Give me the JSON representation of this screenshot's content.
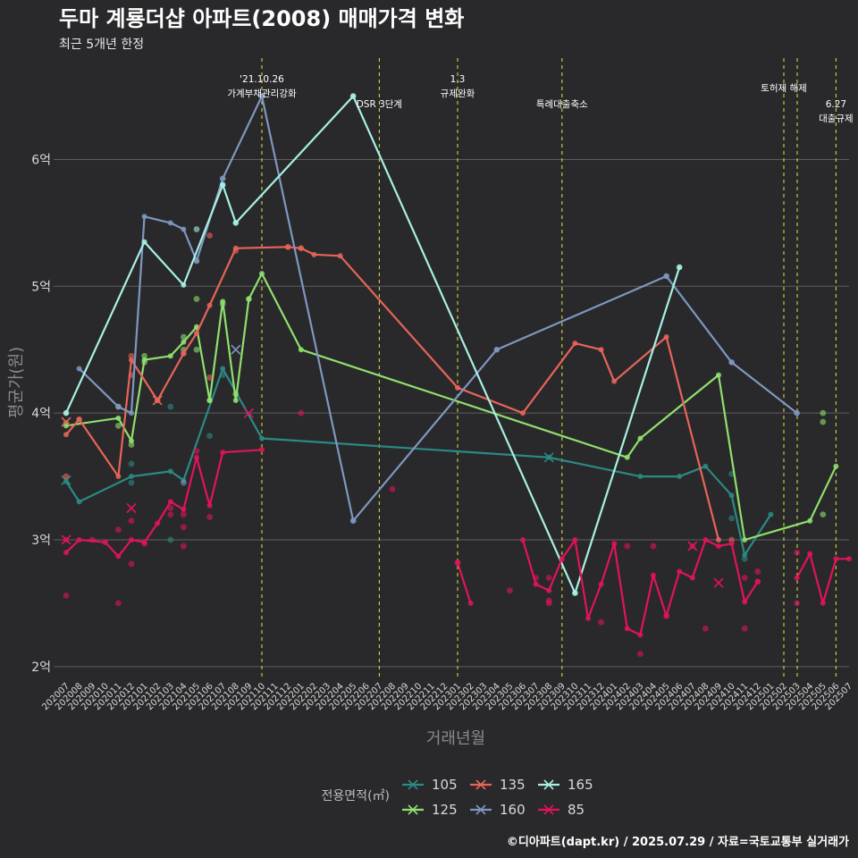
{
  "chart_data": {
    "type": "line",
    "title": "두마 계룡더샵 아파트(2008) 매매가격 변화",
    "subtitle": "최근 5개년 한정",
    "xlabel": "거래년월",
    "ylabel": "평균가(원)",
    "ylim": [
      1.9,
      6.8
    ],
    "yticks": [
      {
        "v": 2,
        "label": "2억"
      },
      {
        "v": 3,
        "label": "3억"
      },
      {
        "v": 4,
        "label": "4억"
      },
      {
        "v": 5,
        "label": "5억"
      },
      {
        "v": 6,
        "label": "6억"
      }
    ],
    "categories": [
      "202007",
      "202008",
      "202009",
      "202010",
      "202011",
      "202012",
      "202101",
      "202102",
      "202103",
      "202104",
      "202105",
      "202106",
      "202107",
      "202108",
      "202109",
      "202110",
      "202111",
      "202112",
      "202201",
      "202202",
      "202203",
      "202204",
      "202205",
      "202206",
      "202207",
      "202208",
      "202209",
      "202210",
      "202211",
      "202212",
      "202301",
      "202302",
      "202303",
      "202304",
      "202305",
      "202306",
      "202307",
      "202308",
      "202309",
      "202310",
      "202311",
      "202312",
      "202401",
      "202402",
      "202403",
      "202404",
      "202405",
      "202406",
      "202407",
      "202408",
      "202409",
      "202410",
      "202411",
      "202412",
      "202501",
      "202502",
      "202503",
      "202504",
      "202505",
      "202506",
      "202507"
    ],
    "grid": true,
    "legend": {
      "title": "전용면적(㎡)",
      "position": "bottom"
    },
    "annotations": [
      {
        "x": 15,
        "lines": [
          "'21.10.26",
          "가계부채관리강화"
        ],
        "row": 0
      },
      {
        "x": 24,
        "lines": [
          "DSR 3단계"
        ],
        "row": 1
      },
      {
        "x": 30,
        "lines": [
          "1.3",
          "규제완화"
        ],
        "row": 0
      },
      {
        "x": 38,
        "lines": [
          "특례대출축소"
        ],
        "row": 1
      },
      {
        "x": 55,
        "lines": [
          "토허제 해제"
        ],
        "row": 0.5
      },
      {
        "x": 56,
        "lines": [],
        "row": 0
      },
      {
        "x": 59,
        "lines": [
          "6.27",
          "대출규제"
        ],
        "row": 1
      }
    ],
    "series": [
      {
        "name": "105",
        "color": "#2a8a84",
        "points": [
          [
            0,
            3.46
          ],
          [
            1,
            3.3
          ],
          [
            5,
            3.5
          ],
          [
            8,
            3.54
          ],
          [
            9,
            3.47
          ],
          [
            12,
            4.35
          ],
          [
            15,
            3.8
          ],
          [
            37,
            3.65
          ],
          [
            44,
            3.5
          ],
          [
            47,
            3.5
          ],
          [
            49,
            3.58
          ],
          [
            51,
            3.35
          ],
          [
            52,
            2.88
          ],
          [
            54,
            3.2
          ]
        ],
        "scatter": [
          [
            5,
            3.6
          ],
          [
            5,
            3.45
          ],
          [
            8,
            4.05
          ],
          [
            8,
            3.0
          ],
          [
            11,
            3.82
          ],
          [
            12,
            4.3
          ],
          [
            51,
            3.17
          ],
          [
            51,
            3.52
          ],
          [
            52,
            2.85
          ]
        ],
        "crosses": [
          [
            0,
            3.47
          ],
          [
            37,
            3.65
          ]
        ]
      },
      {
        "name": "125",
        "color": "#8fe06e",
        "points": [
          [
            0,
            3.9
          ],
          [
            4,
            3.96
          ],
          [
            5,
            3.78
          ],
          [
            6,
            4.42
          ],
          [
            8,
            4.45
          ],
          [
            9,
            4.56
          ],
          [
            10,
            4.68
          ],
          [
            11,
            4.1
          ],
          [
            12,
            4.88
          ],
          [
            13,
            4.1
          ],
          [
            14,
            4.9
          ],
          [
            15,
            5.1
          ],
          [
            18,
            4.5
          ],
          [
            43,
            3.65
          ],
          [
            44,
            3.8
          ],
          [
            50,
            4.3
          ],
          [
            52,
            3.0
          ],
          [
            57,
            3.15
          ],
          [
            59,
            3.58
          ]
        ],
        "scatter": [
          [
            0,
            3.92
          ],
          [
            4,
            4.05
          ],
          [
            4,
            3.9
          ],
          [
            5,
            3.75
          ],
          [
            6,
            4.45
          ],
          [
            6,
            4.4
          ],
          [
            9,
            4.6
          ],
          [
            9,
            4.5
          ],
          [
            10,
            4.9
          ],
          [
            10,
            4.5
          ],
          [
            11,
            4.1
          ],
          [
            12,
            4.86
          ],
          [
            13,
            4.15
          ],
          [
            14,
            4.9
          ],
          [
            58,
            4.0
          ],
          [
            58,
            3.93
          ],
          [
            58,
            3.2
          ]
        ],
        "crosses": []
      },
      {
        "name": "135",
        "color": "#e8645a",
        "points": [
          [
            0,
            3.83
          ],
          [
            1,
            3.95
          ],
          [
            4,
            3.5
          ],
          [
            5,
            4.42
          ],
          [
            7,
            4.1
          ],
          [
            9,
            4.47
          ],
          [
            10,
            4.63
          ],
          [
            11,
            4.85
          ],
          [
            13,
            5.3
          ],
          [
            17,
            5.31
          ],
          [
            18,
            5.3
          ],
          [
            19,
            5.25
          ],
          [
            21,
            5.24
          ],
          [
            30,
            4.2
          ],
          [
            35,
            4.0
          ],
          [
            39,
            4.55
          ],
          [
            41,
            4.5
          ],
          [
            42,
            4.25
          ],
          [
            46,
            4.6
          ],
          [
            50,
            3.0
          ]
        ],
        "scatter": [
          [
            0,
            3.5
          ],
          [
            1,
            3.95
          ],
          [
            5,
            4.45
          ],
          [
            5,
            4.3
          ],
          [
            7,
            4.1
          ],
          [
            9,
            4.47
          ],
          [
            11,
            5.4
          ],
          [
            11,
            4.28
          ],
          [
            13,
            5.28
          ],
          [
            17,
            5.31
          ],
          [
            18,
            5.3
          ],
          [
            51,
            3.0
          ]
        ],
        "crosses": [
          [
            0,
            3.93
          ],
          [
            7,
            4.1
          ]
        ]
      },
      {
        "name": "160",
        "color": "#7f97c0",
        "points": [
          [
            1,
            4.35
          ],
          [
            4,
            4.05
          ],
          [
            5,
            4.0
          ],
          [
            6,
            5.55
          ],
          [
            8,
            5.5
          ],
          [
            9,
            5.45
          ],
          [
            10,
            5.2
          ],
          [
            12,
            5.85
          ],
          [
            15,
            6.5
          ],
          [
            22,
            3.15
          ],
          [
            33,
            4.5
          ],
          [
            46,
            5.08
          ],
          [
            51,
            4.4
          ],
          [
            56,
            4.0
          ]
        ],
        "scatter": [
          [
            9,
            3.45
          ],
          [
            10,
            5.2
          ],
          [
            12,
            5.85
          ],
          [
            15,
            6.5
          ],
          [
            22,
            3.15
          ],
          [
            33,
            4.5
          ],
          [
            46,
            5.08
          ],
          [
            51,
            4.4
          ],
          [
            56,
            4.0
          ]
        ],
        "crosses": [
          [
            13,
            4.5
          ]
        ]
      },
      {
        "name": "165",
        "color": "#a8f0e4",
        "points": [
          [
            0,
            4.0
          ],
          [
            6,
            5.35
          ],
          [
            9,
            5.01
          ],
          [
            12,
            5.8
          ],
          [
            13,
            5.5
          ],
          [
            22,
            6.5
          ],
          [
            39,
            2.58
          ],
          [
            47,
            5.15
          ]
        ],
        "scatter": [
          [
            0,
            4.0
          ],
          [
            10,
            5.45
          ],
          [
            12,
            5.8
          ],
          [
            13,
            5.5
          ],
          [
            22,
            6.5
          ],
          [
            39,
            2.58
          ],
          [
            47,
            5.15
          ]
        ],
        "crosses": []
      },
      {
        "name": "85",
        "color": "#e3135a",
        "points": [
          [
            0,
            2.9
          ],
          [
            1,
            3.0
          ],
          [
            3,
            2.98
          ],
          [
            4,
            2.87
          ],
          [
            5,
            3.0
          ],
          [
            6,
            2.98
          ],
          [
            7,
            3.13
          ],
          [
            8,
            3.3
          ],
          [
            9,
            3.24
          ],
          [
            10,
            3.65
          ],
          [
            11,
            3.27
          ],
          [
            12,
            3.69
          ],
          [
            15,
            3.71
          ]
        ],
        "points2": [
          [
            30,
            2.82
          ],
          [
            31,
            2.5
          ]
        ],
        "points3": [
          [
            35,
            3.0
          ],
          [
            36,
            2.65
          ],
          [
            37,
            2.6
          ],
          [
            38,
            2.85
          ],
          [
            39,
            3.0
          ],
          [
            40,
            2.38
          ],
          [
            41,
            2.65
          ],
          [
            42,
            2.97
          ],
          [
            43,
            2.3
          ],
          [
            44,
            2.25
          ],
          [
            45,
            2.72
          ],
          [
            46,
            2.4
          ],
          [
            47,
            2.75
          ],
          [
            48,
            2.7
          ],
          [
            49,
            3.0
          ],
          [
            50,
            2.95
          ],
          [
            51,
            2.97
          ],
          [
            52,
            2.51
          ],
          [
            53,
            2.67
          ]
        ],
        "points4": [
          [
            56,
            2.7
          ],
          [
            57,
            2.89
          ],
          [
            58,
            2.5
          ],
          [
            59,
            2.85
          ],
          [
            60,
            2.85
          ]
        ],
        "scatter": [
          [
            0,
            2.56
          ],
          [
            0,
            3.0
          ],
          [
            2,
            3.0
          ],
          [
            4,
            3.08
          ],
          [
            4,
            2.5
          ],
          [
            5,
            2.81
          ],
          [
            5,
            3.15
          ],
          [
            6,
            2.97
          ],
          [
            8,
            3.2
          ],
          [
            8,
            3.25
          ],
          [
            9,
            3.2
          ],
          [
            9,
            3.1
          ],
          [
            9,
            2.95
          ],
          [
            10,
            3.7
          ],
          [
            11,
            3.18
          ],
          [
            18,
            4.0
          ],
          [
            25,
            3.4
          ],
          [
            30,
            2.82
          ],
          [
            34,
            2.6
          ],
          [
            36,
            2.7
          ],
          [
            37,
            2.5
          ],
          [
            37,
            2.52
          ],
          [
            37,
            2.7
          ],
          [
            41,
            2.35
          ],
          [
            43,
            2.95
          ],
          [
            44,
            2.1
          ],
          [
            45,
            2.95
          ],
          [
            46,
            2.4
          ],
          [
            48,
            2.95
          ],
          [
            49,
            2.3
          ],
          [
            52,
            2.7
          ],
          [
            52,
            2.3
          ],
          [
            53,
            2.75
          ],
          [
            53,
            2.67
          ],
          [
            56,
            2.9
          ],
          [
            56,
            2.5
          ]
        ],
        "crosses": [
          [
            0,
            3.0
          ],
          [
            5,
            3.25
          ],
          [
            14,
            4.0
          ],
          [
            48,
            2.95
          ],
          [
            50,
            2.66
          ]
        ]
      }
    ]
  },
  "caption": "©디아파트(dapt.kr) / 2025.07.29 / 자료=국토교통부 실거래가"
}
